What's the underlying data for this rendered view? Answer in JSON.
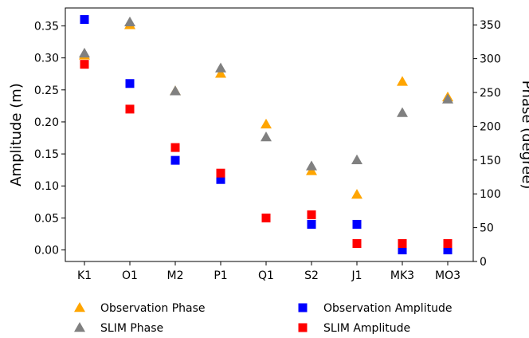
{
  "chart_data": {
    "type": "scatter",
    "categories": [
      "K1",
      "O1",
      "M2",
      "P1",
      "Q1",
      "S2",
      "J1",
      "MK3",
      "MO3"
    ],
    "ylabel": "Amplitude (m)",
    "y2label": "Phase (degree)",
    "ylim": [
      -0.018,
      0.378
    ],
    "y2lim": [
      0,
      375
    ],
    "yticks": [
      "0.00",
      "0.05",
      "0.10",
      "0.15",
      "0.20",
      "0.25",
      "0.30",
      "0.35"
    ],
    "y2ticks": [
      "0",
      "50",
      "100",
      "150",
      "200",
      "250",
      "300",
      "350"
    ],
    "grid": false,
    "legend_position": "bottom",
    "series": [
      {
        "name": "Observation Phase",
        "axis": "right",
        "marker": "triangle",
        "color": "#FFA500",
        "values": [
          305,
          350,
          252,
          278,
          203,
          134,
          99,
          266,
          243
        ]
      },
      {
        "name": "SLIM Phase",
        "axis": "right",
        "marker": "triangle",
        "color": "#808080",
        "values": [
          308,
          354,
          252,
          286,
          184,
          141,
          150,
          220,
          240
        ]
      },
      {
        "name": "Observation Amplitude",
        "axis": "left",
        "marker": "square",
        "color": "#0000FF",
        "values": [
          0.36,
          0.26,
          0.14,
          0.11,
          null,
          0.04,
          0.04,
          0.0,
          0.0
        ]
      },
      {
        "name": "SLIM Amplitude",
        "axis": "left",
        "marker": "square",
        "color": "#FF0000",
        "values": [
          0.29,
          0.22,
          0.16,
          0.12,
          0.05,
          0.055,
          0.01,
          0.01,
          0.01
        ]
      }
    ]
  }
}
